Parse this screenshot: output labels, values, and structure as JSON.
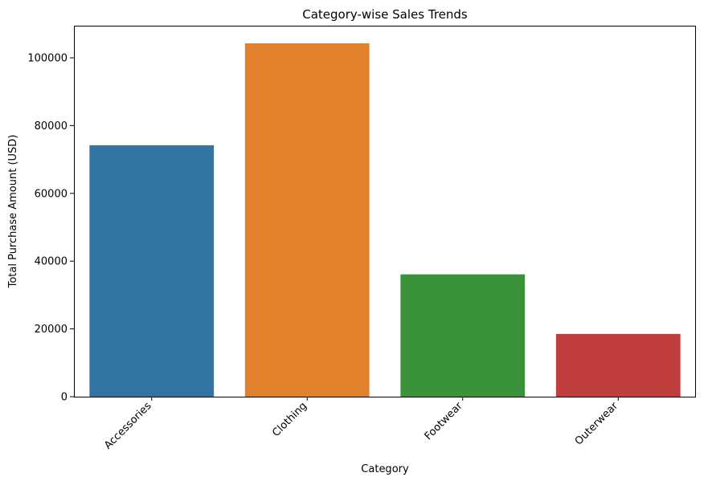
{
  "chart_data": {
    "type": "bar",
    "title": "Category-wise Sales Trends",
    "xlabel": "Category",
    "ylabel": "Total Purchase Amount (USD)",
    "categories": [
      "Accessories",
      "Clothing",
      "Footwear",
      "Outerwear"
    ],
    "values": [
      74200,
      104264,
      36093,
      18524
    ],
    "colors": [
      "#3274a1",
      "#e1812c",
      "#3a923a",
      "#c03d3e"
    ],
    "ylim": [
      0,
      109476
    ],
    "yticks": [
      0,
      20000,
      40000,
      60000,
      80000,
      100000
    ],
    "ytick_labels": [
      "0",
      "20000",
      "40000",
      "60000",
      "80000",
      "100000"
    ],
    "xtick_rotation_deg": 45,
    "grid": false,
    "legend": "none"
  }
}
